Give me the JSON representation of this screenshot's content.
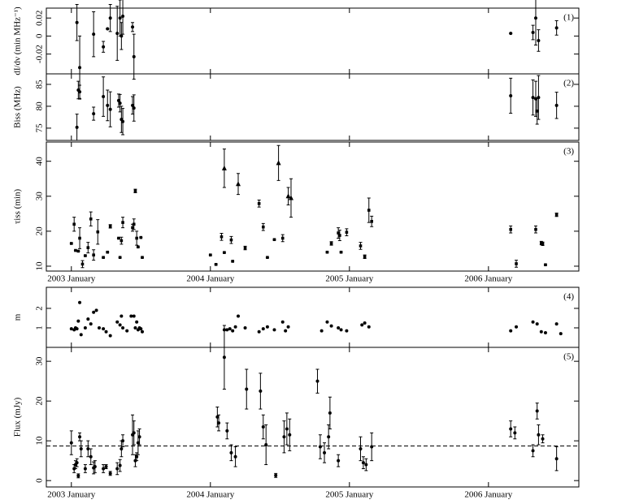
{
  "chart_data": [
    {
      "type": "errorbar",
      "label": "(1)",
      "ylabel": "dI/dν (min MHz⁻¹)",
      "xlim": [
        2002.82,
        2006.65
      ],
      "xticks": [
        2003,
        2004,
        2005,
        2006
      ],
      "ylim": [
        -0.042,
        0.031
      ],
      "yticks": [
        -0.02,
        0,
        0.02
      ],
      "color": "#000000",
      "series": [
        {
          "marker": "circle",
          "x": [
            2003.04,
            2003.06,
            2003.16,
            2003.23,
            2003.26,
            2003.28,
            2003.33,
            2003.35,
            2003.36,
            2003.37,
            2003.44,
            2003.45,
            2006.16,
            2006.32,
            2006.34,
            2006.36,
            2006.49
          ],
          "values": [
            0.015,
            -0.035,
            0.002,
            -0.012,
            0.008,
            0.02,
            0.003,
            0.02,
            0.0,
            0.022,
            0.01,
            -0.023,
            0.003,
            0.004,
            0.02,
            -0.005,
            0.009
          ],
          "errors": [
            0.02,
            0.035,
            0.025,
            0.006,
            0,
            0.015,
            0.03,
            0.02,
            0.015,
            0.02,
            0.005,
            0.025,
            0,
            0.008,
            0.03,
            0.012,
            0.008
          ]
        }
      ]
    },
    {
      "type": "errorbar",
      "label": "(2)",
      "ylabel": "Biss (MHz)",
      "xlim": [
        2002.82,
        2006.65
      ],
      "xticks": [
        2003,
        2004,
        2005,
        2006
      ],
      "ylim": [
        72.2,
        87.4
      ],
      "yticks": [
        75,
        80,
        85
      ],
      "color": "#000000",
      "series": [
        {
          "marker": "circle",
          "x": [
            2003.04,
            2003.05,
            2003.06,
            2003.16,
            2003.23,
            2003.26,
            2003.28,
            2003.34,
            2003.35,
            2003.36,
            2003.37,
            2003.44,
            2003.45,
            2006.16,
            2006.32,
            2006.34,
            2006.35,
            2006.36,
            2006.49
          ],
          "values": [
            75.2,
            83.7,
            83.3,
            78.3,
            82.2,
            80.2,
            79.3,
            81.3,
            80.7,
            77,
            76.5,
            80.2,
            79.6,
            82.4,
            82,
            81.7,
            78.9,
            82,
            80.2
          ],
          "errors": [
            3,
            2,
            1.5,
            1.5,
            4.5,
            3.5,
            4,
            1.5,
            2,
            3,
            3,
            2,
            3,
            4,
            4,
            4,
            3,
            5,
            3
          ]
        }
      ]
    },
    {
      "type": "errorbar",
      "label": "(3)",
      "ylabel": "τiss (min)",
      "xlim": [
        2002.82,
        2006.65
      ],
      "xticks": [
        {
          "value": 2003,
          "label": "2003 January"
        },
        {
          "value": 2004,
          "label": "2004 January"
        },
        {
          "value": 2005,
          "label": "2005 January"
        },
        {
          "value": 2006,
          "label": "2006 January"
        }
      ],
      "ylim": [
        8.6,
        45.5
      ],
      "yticks": [
        10,
        20,
        30,
        40
      ],
      "color": "#000000",
      "series": [
        {
          "marker": "square",
          "x": [
            2003.0,
            2003.02,
            2003.03,
            2003.05,
            2003.06,
            2003.08,
            2003.1,
            2003.12,
            2003.14,
            2003.16,
            2003.19,
            2003.23,
            2003.26,
            2003.28,
            2003.34,
            2003.35,
            2003.36,
            2003.37,
            2003.44,
            2003.45,
            2003.46,
            2003.47,
            2003.48,
            2003.5,
            2003.51,
            2004.0,
            2004.04,
            2004.08,
            2004.1,
            2004.15,
            2004.16,
            2004.25,
            2004.35,
            2004.38,
            2004.41,
            2004.46,
            2004.52,
            2004.84,
            2004.87,
            2004.92,
            2004.93,
            2004.94,
            2004.98,
            2005.08,
            2005.11,
            2005.14,
            2005.16,
            2006.16,
            2006.2,
            2006.34,
            2006.38,
            2006.39,
            2006.41,
            2006.49
          ],
          "values": [
            16.5,
            22,
            14.5,
            14.3,
            18,
            10.6,
            13,
            15.3,
            23.5,
            13.2,
            19.8,
            12.5,
            14,
            21.4,
            18,
            12.5,
            17.3,
            22.5,
            21,
            22,
            31.5,
            18,
            15.5,
            18.2,
            12.5,
            13.2,
            10.5,
            18.4,
            13.9,
            17.5,
            11.4,
            15.2,
            27.9,
            21.2,
            12.5,
            17.6,
            18,
            14,
            16.5,
            19.5,
            18.8,
            14,
            19.7,
            15.8,
            12.7,
            26,
            22.8,
            20.5,
            10.7,
            20.5,
            16.6,
            16.4,
            10.4,
            24.7
          ],
          "errors": [
            0,
            2,
            0,
            0,
            3,
            1,
            0,
            1.5,
            2,
            1.5,
            3.5,
            0,
            0,
            0.5,
            0,
            0,
            1,
            1.5,
            1,
            1.5,
            0.5,
            2,
            0,
            0,
            0,
            0,
            0,
            1,
            0,
            1,
            0,
            0.5,
            1,
            1,
            0,
            0,
            1,
            0,
            0.5,
            1.5,
            1.5,
            0,
            1,
            1,
            0.5,
            3.5,
            1.5,
            1,
            1,
            1,
            0.5,
            0.5,
            0,
            0.5
          ]
        },
        {
          "marker": "triangle",
          "x": [
            2004.1,
            2004.2,
            2004.49,
            2004.56,
            2004.58
          ],
          "values": [
            38,
            33.5,
            39.5,
            30,
            29.5
          ],
          "errors": [
            5.5,
            3,
            5,
            2.5,
            5.5
          ]
        }
      ]
    },
    {
      "type": "scatter",
      "label": "(4)",
      "ylabel": "m",
      "xlim": [
        2002.82,
        2006.65
      ],
      "xticks": [
        2003,
        2004,
        2005,
        2006
      ],
      "ylim": [
        0,
        3.08
      ],
      "yticks": [
        1,
        2
      ],
      "color": "#000000",
      "series": [
        {
          "marker": "circle",
          "x": [
            2003.0,
            2003.02,
            2003.03,
            2003.04,
            2003.05,
            2003.06,
            2003.07,
            2003.1,
            2003.12,
            2003.14,
            2003.16,
            2003.18,
            2003.2,
            2003.23,
            2003.25,
            2003.28,
            2003.33,
            2003.35,
            2003.36,
            2003.37,
            2003.4,
            2003.43,
            2003.45,
            2003.46,
            2003.47,
            2003.48,
            2003.49,
            2003.5,
            2003.51,
            2004.1,
            2004.12,
            2004.14,
            2004.16,
            2004.18,
            2004.2,
            2004.25,
            2004.35,
            2004.38,
            2004.41,
            2004.46,
            2004.52,
            2004.54,
            2004.56,
            2004.8,
            2004.84,
            2004.87,
            2004.92,
            2004.94,
            2004.98,
            2005.09,
            2005.11,
            2005.14,
            2006.16,
            2006.2,
            2006.32,
            2006.35,
            2006.38,
            2006.41,
            2006.49,
            2006.52
          ],
          "values": [
            0.95,
            0.9,
            1.0,
            0.95,
            1.35,
            2.3,
            0.65,
            1.0,
            1.45,
            1.2,
            1.8,
            1.9,
            1.0,
            0.95,
            0.8,
            0.6,
            1.3,
            1.15,
            1.6,
            1.0,
            0.85,
            1.6,
            1.6,
            1.0,
            1.3,
            0.9,
            1.0,
            0.95,
            0.8,
            0.9,
            0.9,
            0.95,
            0.85,
            1.05,
            1.6,
            1.0,
            0.8,
            0.95,
            1.05,
            0.9,
            1.3,
            0.85,
            1.05,
            0.85,
            1.3,
            1.1,
            1.0,
            0.9,
            0.85,
            1.15,
            1.25,
            1.05,
            0.85,
            1.05,
            1.3,
            1.2,
            0.8,
            0.75,
            1.2,
            0.7
          ]
        }
      ]
    },
    {
      "type": "errorbar",
      "label": "(5)",
      "ylabel": "Flux (mJy)",
      "xlim": [
        2002.82,
        2006.65
      ],
      "xticks": [
        {
          "value": 2003,
          "label": "2003 January"
        },
        {
          "value": 2004,
          "label": "2004 January"
        },
        {
          "value": 2005,
          "label": "2005 January"
        },
        {
          "value": 2006,
          "label": "2006 January"
        }
      ],
      "ylim": [
        -1.6,
        33.5
      ],
      "yticks": [
        0,
        10,
        20,
        30
      ],
      "color": "#000000",
      "reference_line": 8.7,
      "series": [
        {
          "marker": "circle",
          "x": [
            2003.0,
            2003.02,
            2003.03,
            2003.04,
            2003.05,
            2003.06,
            2003.07,
            2003.1,
            2003.12,
            2003.14,
            2003.16,
            2003.17,
            2003.23,
            2003.25,
            2003.28,
            2003.33,
            2003.35,
            2003.36,
            2003.37,
            2003.44,
            2003.45,
            2003.46,
            2003.47,
            2003.48,
            2003.49,
            2004.05,
            2004.06,
            2004.1,
            2004.12,
            2004.15,
            2004.18,
            2004.26,
            2004.36,
            2004.38,
            2004.4,
            2004.47,
            2004.53,
            2004.55,
            2004.57,
            2004.77,
            2004.79,
            2004.82,
            2004.85,
            2004.86,
            2004.92,
            2005.08,
            2005.1,
            2005.12,
            2005.16,
            2006.16,
            2006.19,
            2006.32,
            2006.35,
            2006.36,
            2006.39,
            2006.49
          ],
          "values": [
            9.5,
            3,
            4,
            4.5,
            1.2,
            11,
            8,
            3,
            8,
            6,
            3.2,
            3.5,
            3,
            3.5,
            1.8,
            3,
            3.8,
            8,
            10,
            11.5,
            12,
            5,
            6,
            9.5,
            11,
            16,
            14.5,
            31,
            12.5,
            7,
            6,
            23,
            22.5,
            13.5,
            9,
            1.3,
            11,
            13,
            11.5,
            25,
            8.5,
            7,
            11,
            17,
            5,
            8,
            4.5,
            4,
            8.5,
            13,
            12,
            7.5,
            17.5,
            11.5,
            10.5,
            5.5
          ],
          "errors": [
            3,
            1,
            1,
            1,
            0.5,
            1,
            2,
            1,
            2,
            2,
            1.5,
            1.5,
            1,
            0.5,
            0.5,
            1.5,
            1.5,
            2,
            1.5,
            5,
            3,
            1.5,
            1,
            3,
            2,
            2.5,
            2,
            8,
            2,
            2,
            2.5,
            5,
            4.5,
            3,
            5,
            0.5,
            4,
            4,
            4,
            3,
            3,
            2.5,
            3,
            4,
            1.5,
            3,
            1.5,
            1.5,
            3.5,
            2,
            1.5,
            1.5,
            2,
            2.5,
            1,
            3
          ]
        }
      ]
    }
  ]
}
